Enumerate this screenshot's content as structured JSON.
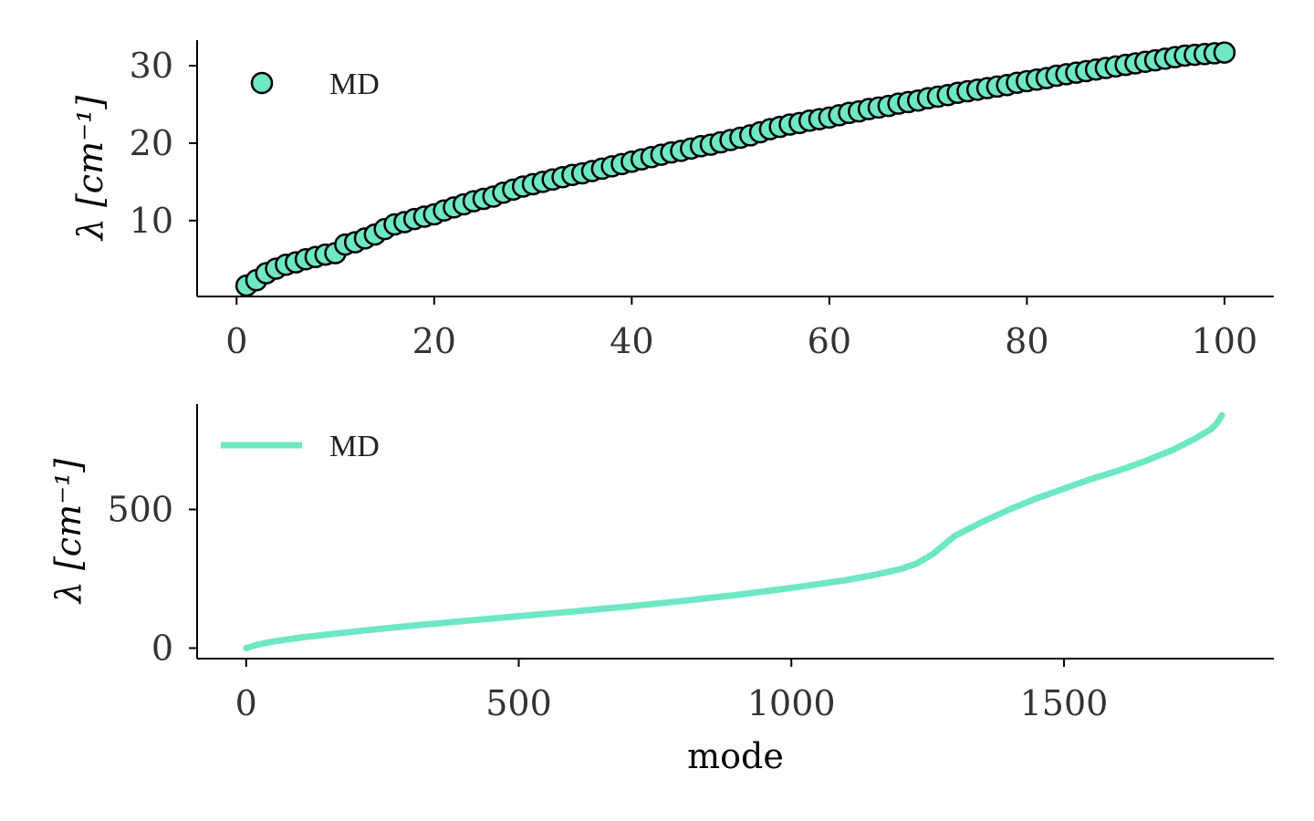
{
  "chart_data": [
    {
      "type": "scatter",
      "xlabel": "",
      "ylabel": "λ [cm⁻¹]",
      "xlim": [
        -4,
        105
      ],
      "ylim": [
        0.2,
        33.3
      ],
      "xticks": [
        0,
        20,
        40,
        60,
        80,
        100
      ],
      "yticks": [
        10,
        20,
        30
      ],
      "grid": false,
      "legend": {
        "entries": [
          "MD"
        ],
        "placement": "top-left"
      },
      "series": [
        {
          "name": "MD",
          "color": "#6ee7c5",
          "edge_color": "#000000",
          "x": [
            1,
            2,
            3,
            4,
            5,
            6,
            7,
            8,
            9,
            10,
            11,
            12,
            13,
            14,
            15,
            16,
            17,
            18,
            19,
            20,
            21,
            22,
            23,
            24,
            25,
            26,
            27,
            28,
            29,
            30,
            31,
            32,
            33,
            34,
            35,
            36,
            37,
            38,
            39,
            40,
            41,
            42,
            43,
            44,
            45,
            46,
            47,
            48,
            49,
            50,
            51,
            52,
            53,
            54,
            55,
            56,
            57,
            58,
            59,
            60,
            61,
            62,
            63,
            64,
            65,
            66,
            67,
            68,
            69,
            70,
            71,
            72,
            73,
            74,
            75,
            76,
            77,
            78,
            79,
            80,
            81,
            82,
            83,
            84,
            85,
            86,
            87,
            88,
            89,
            90,
            91,
            92,
            93,
            94,
            95,
            96,
            97,
            98,
            99,
            100
          ],
          "y": [
            1.6,
            2.3,
            3.2,
            3.8,
            4.3,
            4.6,
            5.0,
            5.3,
            5.6,
            5.8,
            6.9,
            7.2,
            7.7,
            8.2,
            8.9,
            9.5,
            9.8,
            10.2,
            10.5,
            10.8,
            11.3,
            11.7,
            12.1,
            12.5,
            12.8,
            13.1,
            13.6,
            14.0,
            14.4,
            14.7,
            15.0,
            15.3,
            15.6,
            15.9,
            16.1,
            16.4,
            16.7,
            17.0,
            17.3,
            17.6,
            17.9,
            18.2,
            18.5,
            18.8,
            19.0,
            19.3,
            19.6,
            19.8,
            20.1,
            20.4,
            20.7,
            21.0,
            21.4,
            21.8,
            22.1,
            22.4,
            22.6,
            22.9,
            23.1,
            23.3,
            23.6,
            23.9,
            24.1,
            24.4,
            24.6,
            24.8,
            25.1,
            25.3,
            25.5,
            25.8,
            26.0,
            26.2,
            26.5,
            26.7,
            26.9,
            27.1,
            27.3,
            27.5,
            27.8,
            28.0,
            28.2,
            28.4,
            28.7,
            28.9,
            29.1,
            29.3,
            29.5,
            29.7,
            29.9,
            30.1,
            30.3,
            30.5,
            30.7,
            30.9,
            31.1,
            31.3,
            31.4,
            31.5,
            31.6,
            31.7
          ]
        }
      ]
    },
    {
      "type": "line",
      "xlabel": "mode",
      "ylabel": "λ [cm⁻¹]",
      "xlim": [
        -90,
        1885
      ],
      "ylim": [
        -38,
        880
      ],
      "xticks": [
        0,
        500,
        1000,
        1500
      ],
      "yticks": [
        0,
        500
      ],
      "grid": false,
      "legend": {
        "entries": [
          "MD"
        ],
        "placement": "top-left"
      },
      "series": [
        {
          "name": "MD",
          "color": "#6ee7c5",
          "x": [
            0,
            20,
            50,
            100,
            200,
            300,
            400,
            500,
            600,
            700,
            800,
            900,
            1000,
            1100,
            1150,
            1200,
            1230,
            1260,
            1300,
            1350,
            1400,
            1450,
            1500,
            1550,
            1600,
            1650,
            1700,
            1740,
            1770,
            1780,
            1790
          ],
          "y": [
            0,
            12,
            24,
            38,
            60,
            80,
            98,
            115,
            132,
            150,
            170,
            192,
            217,
            245,
            263,
            285,
            305,
            340,
            405,
            455,
            500,
            540,
            575,
            610,
            640,
            675,
            715,
            755,
            790,
            810,
            840
          ]
        }
      ]
    }
  ]
}
